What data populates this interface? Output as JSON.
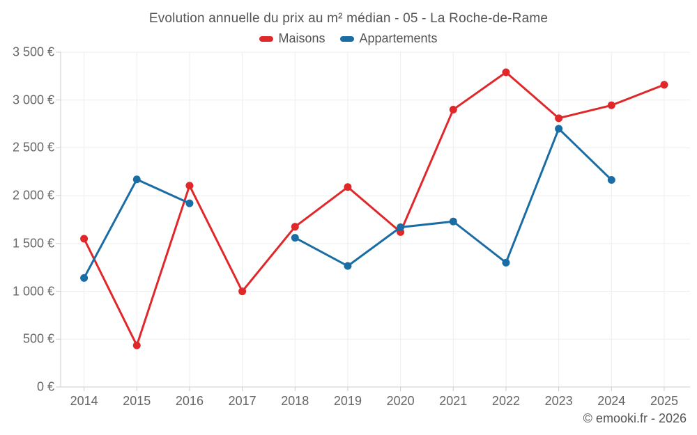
{
  "chart_data": {
    "type": "line",
    "title": "Evolution annuelle du prix au m² médian - 05 - La Roche-de-Rame",
    "footer": "© emooki.fr - 2026",
    "categories": [
      "2014",
      "2015",
      "2016",
      "2017",
      "2018",
      "2019",
      "2020",
      "2021",
      "2022",
      "2023",
      "2024",
      "2025"
    ],
    "series": [
      {
        "name": "Maisons",
        "color": "#e0282b",
        "values": [
          1550,
          435,
          2105,
          1000,
          1675,
          2090,
          1620,
          2900,
          3290,
          2810,
          2945,
          3160
        ]
      },
      {
        "name": "Appartements",
        "color": "#1a6ca5",
        "values": [
          1140,
          2170,
          1920,
          null,
          1560,
          1265,
          1670,
          1730,
          1300,
          2700,
          2165,
          null
        ]
      }
    ],
    "ylim": [
      0,
      3500
    ],
    "y_tick_step": 500,
    "y_tick_labels": [
      "0 €",
      "500 €",
      "1 000 €",
      "1 500 €",
      "2 000 €",
      "2 500 €",
      "3 000 €",
      "3 500 €"
    ],
    "xlabel": "",
    "ylabel": "",
    "grid": true,
    "legend_position": "top",
    "colors": {
      "grid": "#ededed",
      "axis": "#cccccc"
    }
  }
}
